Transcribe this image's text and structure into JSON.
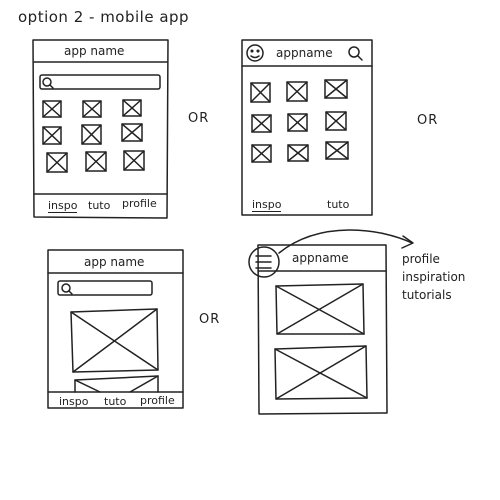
{
  "page_title": "option 2 - mobile app",
  "or_label": "OR",
  "sketch1": {
    "title": "app name",
    "nav": [
      "inspo",
      "tuto",
      "profile"
    ],
    "active_nav": "inspo"
  },
  "sketch2": {
    "title": "appname",
    "nav": [
      "inspo",
      "tuto"
    ],
    "active_nav": "inspo"
  },
  "sketch3": {
    "title": "app name",
    "nav": [
      "inspo",
      "tuto",
      "profile"
    ]
  },
  "sketch4": {
    "title": "appname",
    "menu_items": [
      "profile",
      "inspiration",
      "tutorials"
    ]
  },
  "icons": [
    "search-icon",
    "smiley-icon",
    "hamburger-menu-icon",
    "image-placeholder-icon",
    "arrow-icon"
  ],
  "colors": {
    "ink": "#222222",
    "paper": "#ffffff"
  }
}
